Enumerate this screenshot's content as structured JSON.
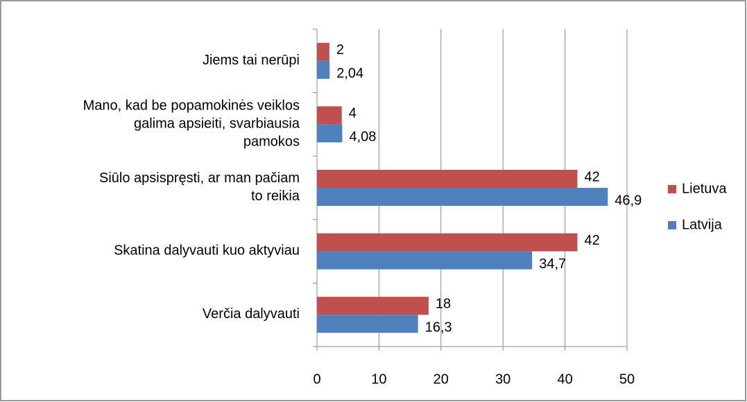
{
  "chart_data": {
    "type": "hbar",
    "categories": [
      "Jiems tai nerūpi",
      "Mano, kad be popamokinės veiklos galima apsieiti, svarbiausia pamokos",
      "Siūlo apsispręsti, ar man pačiam to reikia",
      "Skatina dalyvauti kuo aktyviau",
      "Verčia dalyvauti"
    ],
    "series": [
      {
        "name": "Lietuva",
        "color": "#c0504d",
        "values": [
          2,
          4,
          42,
          42,
          18
        ],
        "value_labels": [
          "2",
          "4",
          "42",
          "42",
          "18"
        ]
      },
      {
        "name": "Latvija",
        "color": "#4f81bd",
        "values": [
          2.04,
          4.08,
          46.9,
          34.7,
          16.3
        ],
        "value_labels": [
          "2,04",
          "4,08",
          "46,9",
          "34,7",
          "16,3"
        ]
      }
    ],
    "xlim": [
      0,
      50
    ],
    "xticks": [
      0,
      10,
      20,
      30,
      40,
      50
    ],
    "grid": true,
    "legend": "right"
  }
}
